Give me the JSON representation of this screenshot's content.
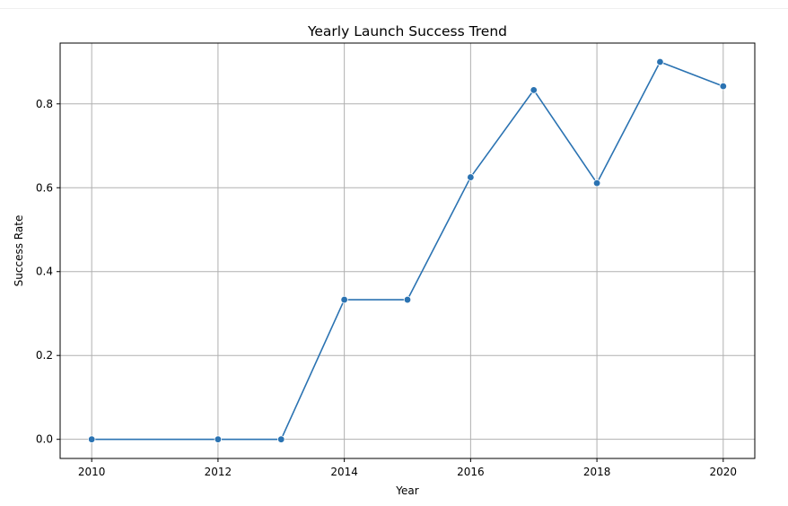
{
  "chart_data": {
    "type": "line",
    "title": "Yearly Launch Success Trend",
    "xlabel": "Year",
    "ylabel": "Success Rate",
    "xlim": [
      2009.5,
      2020.5
    ],
    "ylim": [
      -0.0456,
      0.945
    ],
    "x_ticks": [
      2010,
      2012,
      2014,
      2016,
      2018,
      2020
    ],
    "y_ticks": [
      0.0,
      0.2,
      0.4,
      0.6,
      0.8
    ],
    "y_tick_labels": [
      "0.0",
      "0.2",
      "0.4",
      "0.6",
      "0.8"
    ],
    "grid": true,
    "series": [
      {
        "color": "#2b73b2",
        "marker": "circle",
        "x": [
          2010,
          2012,
          2013,
          2014,
          2015,
          2016,
          2017,
          2018,
          2019,
          2020
        ],
        "y": [
          0.0,
          0.0,
          0.0,
          0.333,
          0.333,
          0.625,
          0.833,
          0.611,
          0.9,
          0.842
        ]
      }
    ]
  }
}
